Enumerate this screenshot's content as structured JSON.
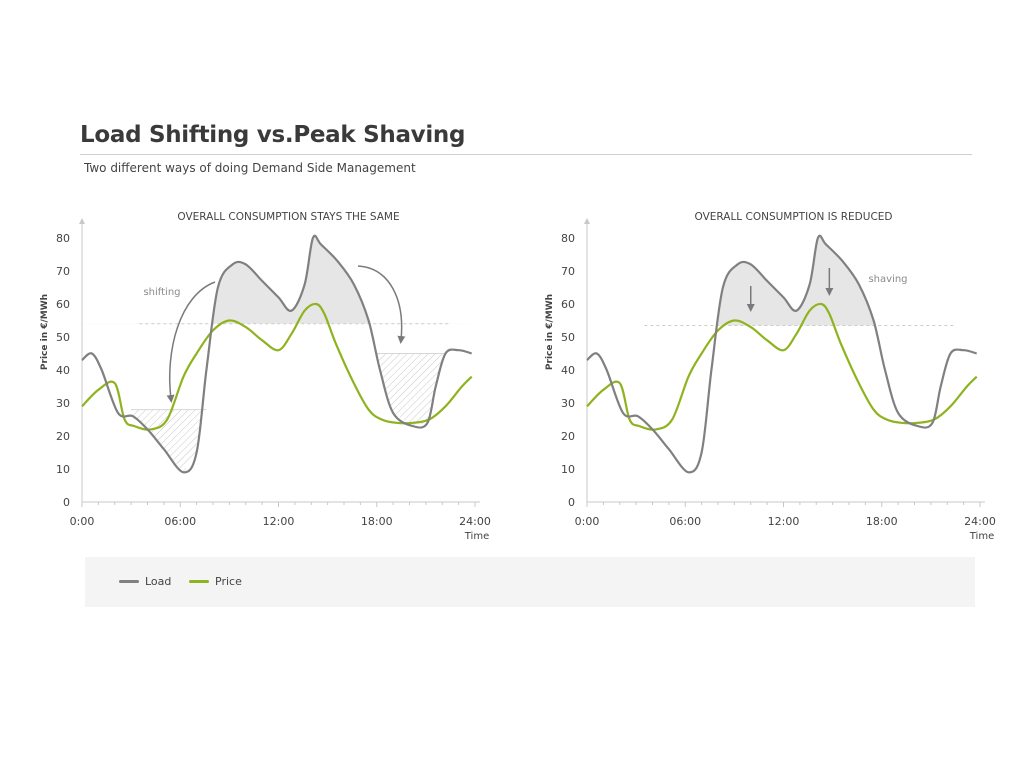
{
  "header": {
    "title": "Load Shifting vs.Peak Shaving",
    "subtitle": "Two different ways of doing Demand Side Management"
  },
  "colors": {
    "load": "#808080",
    "price": "#8fb31f",
    "shaded": "#e6e6e6",
    "axis": "#c8c8c8"
  },
  "legend": {
    "items": [
      {
        "label": "Load",
        "color": "#808080"
      },
      {
        "label": "Price",
        "color": "#8fb31f"
      }
    ]
  },
  "chart_data": [
    {
      "type": "line",
      "title": "OVERALL CONSUMPTION STAYS THE SAME",
      "ylabel": "Price in €/MWh",
      "xlabel": "Time",
      "ylim": [
        0,
        80
      ],
      "yticks": [
        0,
        10,
        20,
        30,
        40,
        50,
        60,
        70,
        80
      ],
      "xlim": [
        0,
        24
      ],
      "xtick_labels": [
        "0:00",
        "06:00",
        "12:00",
        "18:00",
        "24:00"
      ],
      "annotation": "shifting",
      "threshold": 54,
      "series": [
        {
          "name": "Load",
          "x": [
            0,
            0.6,
            1.2,
            2.2,
            3.1,
            4,
            5,
            6.2,
            7,
            7.6,
            8.3,
            9.2,
            10,
            11,
            12,
            12.8,
            13.6,
            14.1,
            14.6,
            15.6,
            16.6,
            17.5,
            18.2,
            19,
            20.2,
            21.1,
            21.6,
            22.2,
            23,
            23.8
          ],
          "y": [
            43,
            45,
            40,
            27,
            26,
            22,
            16,
            9,
            15,
            40,
            65,
            72,
            72,
            67,
            62,
            58,
            66,
            80,
            78,
            73,
            66,
            55,
            40,
            27,
            23,
            24,
            35,
            45,
            46,
            45
          ]
        },
        {
          "name": "Price",
          "x": [
            0,
            1,
            2,
            2.6,
            3.2,
            4.2,
            5.2,
            6.2,
            7,
            8,
            9,
            10,
            11,
            12,
            12.8,
            13.6,
            14.3,
            14.8,
            15.5,
            16.5,
            17.5,
            18.3,
            19.2,
            20.2,
            21.2,
            22.2,
            23.2,
            23.8
          ],
          "y": [
            29,
            34,
            36,
            25,
            23,
            22,
            25,
            38,
            45,
            52,
            55,
            53,
            49,
            46,
            51,
            58,
            60,
            57,
            48,
            37,
            28,
            25,
            24,
            24,
            25,
            29,
            35,
            38
          ]
        }
      ]
    },
    {
      "type": "line",
      "title": "OVERALL CONSUMPTION IS REDUCED",
      "ylabel": "Price in €/MWh",
      "xlabel": "Time",
      "ylim": [
        0,
        80
      ],
      "yticks": [
        0,
        10,
        20,
        30,
        40,
        50,
        60,
        70,
        80
      ],
      "xlim": [
        0,
        24
      ],
      "xtick_labels": [
        "0:00",
        "06:00",
        "12:00",
        "18:00",
        "24:00"
      ],
      "annotation": "shaving",
      "threshold": 53.5,
      "series": [
        {
          "name": "Load",
          "x": [
            0,
            0.6,
            1.2,
            2.2,
            3.1,
            4,
            5,
            6.2,
            7,
            7.6,
            8.3,
            9.2,
            10,
            11,
            12,
            12.8,
            13.6,
            14.1,
            14.6,
            15.6,
            16.6,
            17.5,
            18.2,
            19,
            20.2,
            21.1,
            21.6,
            22.2,
            23,
            23.8
          ],
          "y": [
            43,
            45,
            40,
            27,
            26,
            22,
            16,
            9,
            15,
            40,
            65,
            72,
            72,
            67,
            62,
            58,
            66,
            80,
            78,
            73,
            66,
            55,
            40,
            27,
            23,
            24,
            35,
            45,
            46,
            45
          ]
        },
        {
          "name": "Price",
          "x": [
            0,
            1,
            2,
            2.6,
            3.2,
            4.2,
            5.2,
            6.2,
            7,
            8,
            9,
            10,
            11,
            12,
            12.8,
            13.6,
            14.3,
            14.8,
            15.5,
            16.5,
            17.5,
            18.3,
            19.2,
            20.2,
            21.2,
            22.2,
            23.2,
            23.8
          ],
          "y": [
            29,
            34,
            36,
            25,
            23,
            22,
            25,
            38,
            45,
            52,
            55,
            53,
            49,
            46,
            51,
            58,
            60,
            57,
            48,
            37,
            28,
            25,
            24,
            24,
            25,
            29,
            35,
            38
          ]
        }
      ]
    }
  ]
}
